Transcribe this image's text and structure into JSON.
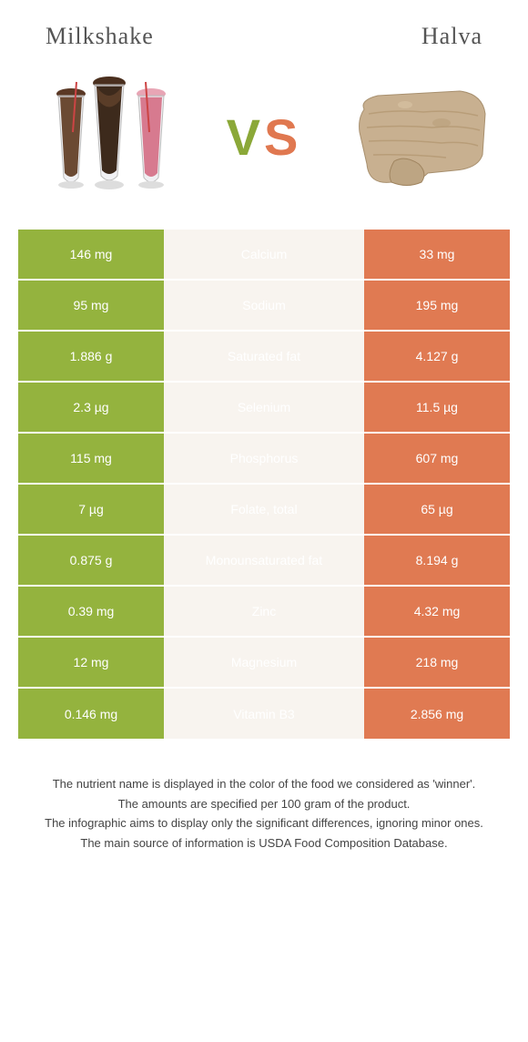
{
  "header": {
    "left": "Milkshake",
    "right": "Halva"
  },
  "vs": {
    "v": "V",
    "s": "S"
  },
  "colors": {
    "green": "#94b33e",
    "orange": "#e07a52",
    "mid_bg": "#f8f4ef",
    "mid_green": "#8aa636",
    "mid_orange": "#d86b45"
  },
  "rows": [
    {
      "left": "146 mg",
      "label": "Calcium",
      "right": "33 mg",
      "winner": "left"
    },
    {
      "left": "95 mg",
      "label": "Sodium",
      "right": "195 mg",
      "winner": "left"
    },
    {
      "left": "1.886 g",
      "label": "Saturated fat",
      "right": "4.127 g",
      "winner": "left"
    },
    {
      "left": "2.3 µg",
      "label": "Selenium",
      "right": "11.5 µg",
      "winner": "right"
    },
    {
      "left": "115 mg",
      "label": "Phosphorus",
      "right": "607 mg",
      "winner": "right"
    },
    {
      "left": "7 µg",
      "label": "Folate, total",
      "right": "65 µg",
      "winner": "right"
    },
    {
      "left": "0.875 g",
      "label": "Monounsaturated fat",
      "right": "8.194 g",
      "winner": "right"
    },
    {
      "left": "0.39 mg",
      "label": "Zinc",
      "right": "4.32 mg",
      "winner": "right"
    },
    {
      "left": "12 mg",
      "label": "Magnesium",
      "right": "218 mg",
      "winner": "right"
    },
    {
      "left": "0.146 mg",
      "label": "Vitamin B3",
      "right": "2.856 mg",
      "winner": "right"
    }
  ],
  "footer": {
    "line1": "The nutrient name is displayed in the color of the food we considered as 'winner'.",
    "line2": "The amounts are specified per 100 gram of the product.",
    "line3": "The infographic aims to display only the significant differences, ignoring minor ones.",
    "line4": "The main source of information is USDA Food Composition Database."
  }
}
